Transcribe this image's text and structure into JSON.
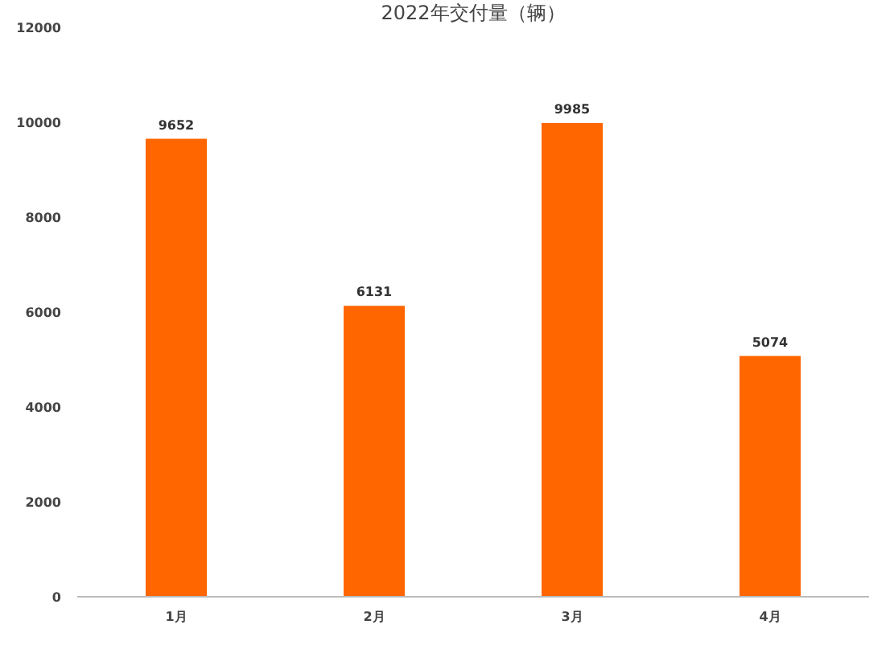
{
  "chart_data": {
    "type": "bar",
    "title": "2022年交付量（辆）",
    "categories": [
      "1月",
      "2月",
      "3月",
      "4月"
    ],
    "values": [
      9652,
      6131,
      9985,
      5074
    ],
    "color": "#ff6600",
    "ylim": [
      0,
      12000
    ],
    "yticks": [
      0,
      2000,
      4000,
      6000,
      8000,
      10000,
      12000
    ],
    "grid": false,
    "data_labels": true
  }
}
